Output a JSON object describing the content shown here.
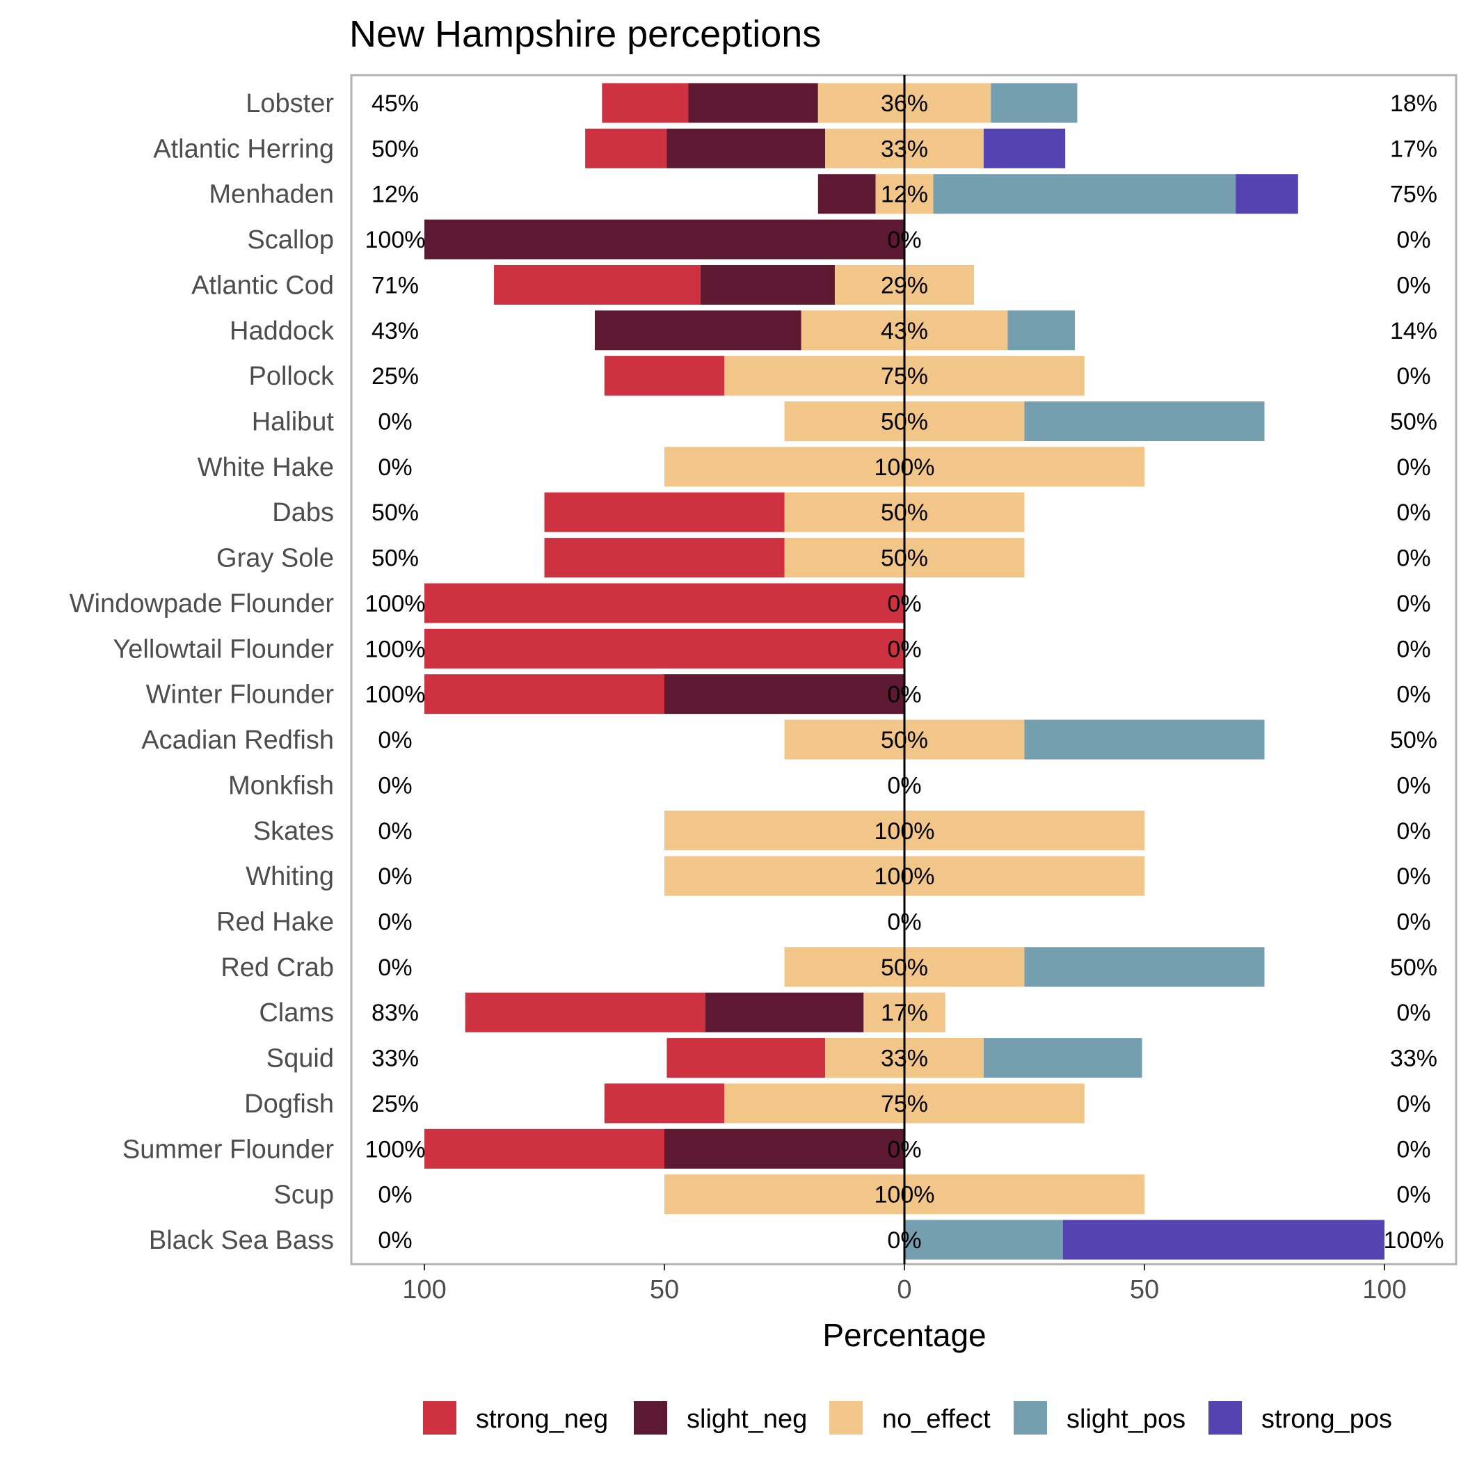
{
  "chart_data": {
    "type": "bar",
    "title": "New Hampshire perceptions",
    "xlabel": "Percentage",
    "ylabel": "",
    "xlim": [
      -100,
      100
    ],
    "x_ticks": [
      -100,
      -50,
      0,
      50,
      100
    ],
    "x_tick_labels": [
      "100",
      "50",
      "0",
      "50",
      "100"
    ],
    "grid": false,
    "legend_position": "bottom",
    "categories": [
      "Lobster",
      "Atlantic Herring",
      "Menhaden",
      "Scallop",
      "Atlantic Cod",
      "Haddock",
      "Pollock",
      "Halibut",
      "White Hake",
      "Dabs",
      "Gray Sole",
      "Windowpade Flounder",
      "Yellowtail Flounder",
      "Winter Flounder",
      "Acadian Redfish",
      "Monkfish",
      "Skates",
      "Whiting",
      "Red Hake",
      "Red Crab",
      "Clams",
      "Squid",
      "Dogfish",
      "Summer Flounder",
      "Scup",
      "Black Sea Bass"
    ],
    "series": [
      {
        "name": "strong_neg",
        "color": "#CE3241",
        "values": [
          18,
          17,
          0,
          0,
          43,
          0,
          25,
          0,
          0,
          50,
          50,
          100,
          100,
          50,
          0,
          0,
          0,
          0,
          0,
          0,
          50,
          33,
          25,
          50,
          0,
          0
        ]
      },
      {
        "name": "slight_neg",
        "color": "#5D1931",
        "values": [
          27,
          33,
          12,
          100,
          28,
          43,
          0,
          0,
          0,
          0,
          0,
          0,
          0,
          50,
          0,
          0,
          0,
          0,
          0,
          0,
          33,
          0,
          0,
          50,
          0,
          0
        ]
      },
      {
        "name": "no_effect",
        "color": "#F2C588",
        "values": [
          36,
          33,
          12,
          0,
          29,
          43,
          75,
          50,
          100,
          50,
          50,
          0,
          0,
          0,
          50,
          0,
          100,
          100,
          0,
          50,
          17,
          33,
          75,
          0,
          100,
          0
        ]
      },
      {
        "name": "slight_pos",
        "color": "#759FAF",
        "values": [
          18,
          0,
          63,
          0,
          0,
          14,
          0,
          50,
          0,
          0,
          0,
          0,
          0,
          0,
          50,
          0,
          0,
          0,
          0,
          50,
          0,
          33,
          0,
          0,
          0,
          33
        ]
      },
      {
        "name": "strong_pos",
        "color": "#5443B1",
        "values": [
          0,
          17,
          13,
          0,
          0,
          0,
          0,
          0,
          0,
          0,
          0,
          0,
          0,
          0,
          0,
          0,
          0,
          0,
          0,
          0,
          0,
          0,
          0,
          0,
          0,
          67
        ]
      }
    ],
    "left_labels": [
      "45%",
      "50%",
      "12%",
      "100%",
      "71%",
      "43%",
      "25%",
      "0%",
      "0%",
      "50%",
      "50%",
      "100%",
      "100%",
      "100%",
      "0%",
      "0%",
      "0%",
      "0%",
      "0%",
      "0%",
      "83%",
      "33%",
      "25%",
      "100%",
      "0%",
      "0%"
    ],
    "center_labels": [
      "36%",
      "33%",
      "12%",
      "0%",
      "29%",
      "43%",
      "75%",
      "50%",
      "100%",
      "50%",
      "50%",
      "0%",
      "0%",
      "0%",
      "50%",
      "0%",
      "100%",
      "100%",
      "0%",
      "50%",
      "17%",
      "33%",
      "75%",
      "0%",
      "100%",
      "0%"
    ],
    "right_labels": [
      "18%",
      "17%",
      "75%",
      "0%",
      "0%",
      "14%",
      "0%",
      "50%",
      "0%",
      "0%",
      "0%",
      "0%",
      "0%",
      "0%",
      "50%",
      "0%",
      "0%",
      "0%",
      "0%",
      "50%",
      "0%",
      "33%",
      "0%",
      "0%",
      "0%",
      "100%"
    ]
  }
}
